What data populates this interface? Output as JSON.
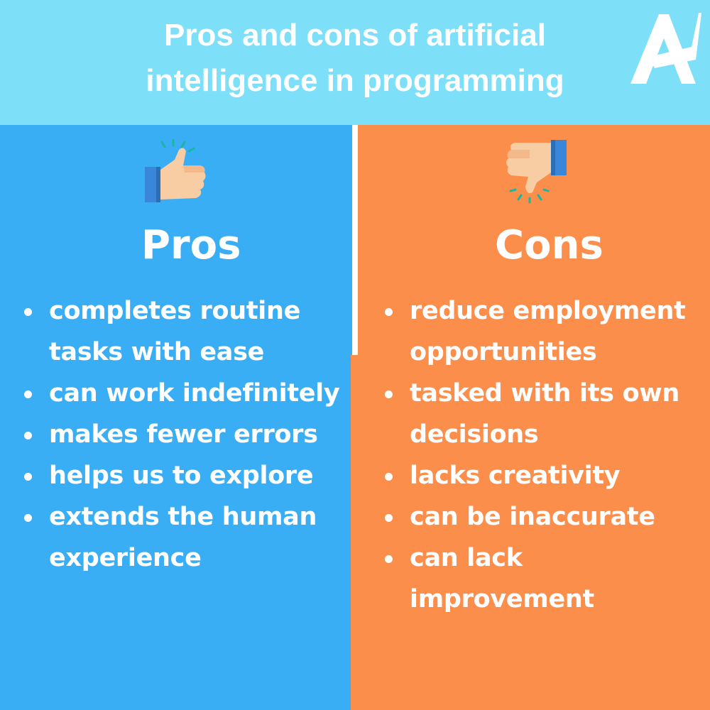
{
  "header": {
    "title_lines": [
      "Pros and cons of artificial",
      "intelligence  in programming"
    ],
    "background": "#7ddff8"
  },
  "logo": {
    "name": "a-logo-icon",
    "color": "#ffffff"
  },
  "pros": {
    "icon": "thumbs-up-icon",
    "heading": "Pros",
    "color": "#3aaef5",
    "items": [
      {
        "lines": [
          "completes routine",
          "tasks with ease"
        ]
      },
      {
        "lines": [
          "can work indefinitely"
        ]
      },
      {
        "lines": [
          "makes fewer errors"
        ]
      },
      {
        "lines": [
          "helps us to explore"
        ]
      },
      {
        "lines": [
          "extends the human",
          "experience"
        ]
      }
    ]
  },
  "cons": {
    "icon": "thumbs-down-icon",
    "heading": "Cons",
    "color": "#fc8e4c",
    "items": [
      {
        "lines": [
          "reduce employment",
          "opportunities"
        ]
      },
      {
        "lines": [
          "tasked with its own",
          "decisions"
        ]
      },
      {
        "lines": [
          "lacks creativity"
        ]
      },
      {
        "lines": [
          "can be inaccurate"
        ]
      },
      {
        "lines": [
          "can lack",
          "improvement"
        ]
      }
    ]
  }
}
